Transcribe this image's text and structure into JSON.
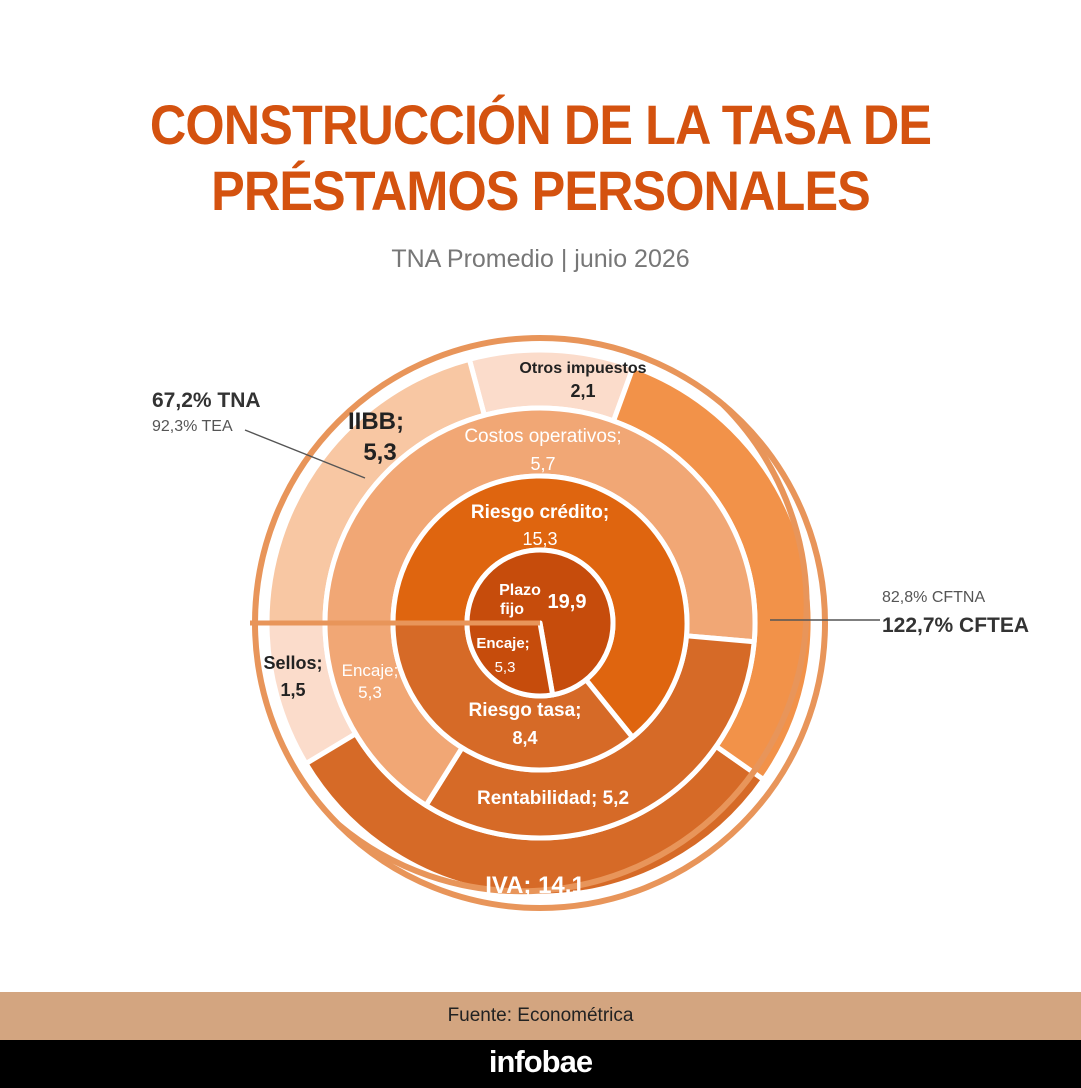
{
  "title_line1": "CONSTRUCCIÓN DE LA TASA DE",
  "title_line2": "PRÉSTAMOS PERSONALES",
  "subtitle": "TNA Promedio | junio 2026",
  "footer": {
    "source": "Fuente: Econométrica",
    "brand": "infobae"
  },
  "colors": {
    "title": "#d4520f",
    "ring_outline": "#e8955a",
    "inner_core": "#c64c0c",
    "inner_ring": "#df650f",
    "middle_ring_main": "#f1a775",
    "outer_ring_light": "#f8c7a3",
    "outer_ring_lighter": "#fbdccb",
    "outer_ring_orange": "#f29249",
    "darker_band": "#d66a27",
    "source_bar": "#d3a580",
    "brand_bar": "#000000"
  },
  "chart_data": {
    "type": "pie",
    "layers": [
      {
        "level": "core",
        "segments": [
          {
            "label": "Plazo fijo",
            "value": 19.9,
            "value_text": "19,9"
          },
          {
            "label": "Encaje;",
            "value": 5.3,
            "value_text": "5,3"
          }
        ]
      },
      {
        "level": "ring1",
        "segments": [
          {
            "label": "Riesgo crédito;",
            "value": 15.3,
            "value_text": "15,3"
          },
          {
            "label": "Riesgo tasa;",
            "value": 8.4,
            "value_text": "8,4"
          }
        ]
      },
      {
        "level": "ring2",
        "segments": [
          {
            "label": "Costos operativos;",
            "value": 5.7,
            "value_text": "5,7"
          },
          {
            "label": "Rentabilidad; 5,2",
            "value": 5.2,
            "value_text": ""
          },
          {
            "label": "Encaje;",
            "value": 5.3,
            "value_text": "5,3"
          }
        ]
      },
      {
        "level": "ring3",
        "segments": [
          {
            "label": "Otros impuestos",
            "value": 2.1,
            "value_text": "2,1"
          },
          {
            "label": "IIBB;",
            "value": 5.3,
            "value_text": "5,3"
          },
          {
            "label": "Sellos;",
            "value": 1.5,
            "value_text": "1,5"
          },
          {
            "label": "IVA; 14,1",
            "value": 14.1,
            "value_text": ""
          }
        ]
      }
    ],
    "annotations": [
      {
        "strong": "67,2% TNA",
        "light": "92,3% TEA",
        "side": "left"
      },
      {
        "strong": "122,7% CFTEA",
        "light": "82,8% CFTNA",
        "side": "right"
      }
    ]
  }
}
